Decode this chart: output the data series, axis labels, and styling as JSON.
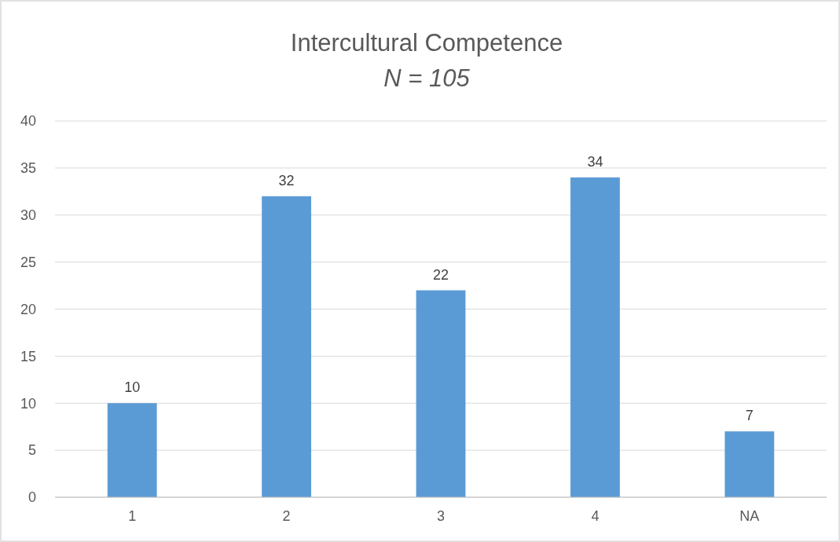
{
  "chart_data": {
    "type": "bar",
    "title": "Intercultural Competence",
    "subtitle": "N = 105",
    "categories": [
      "1",
      "2",
      "3",
      "4",
      "NA"
    ],
    "values": [
      10,
      32,
      22,
      34,
      7
    ],
    "color": "#5b9bd5",
    "ylim": [
      0,
      40
    ],
    "yticks": [
      0,
      5,
      10,
      15,
      20,
      25,
      30,
      35,
      40
    ],
    "grid": "y",
    "data_labels": true
  }
}
